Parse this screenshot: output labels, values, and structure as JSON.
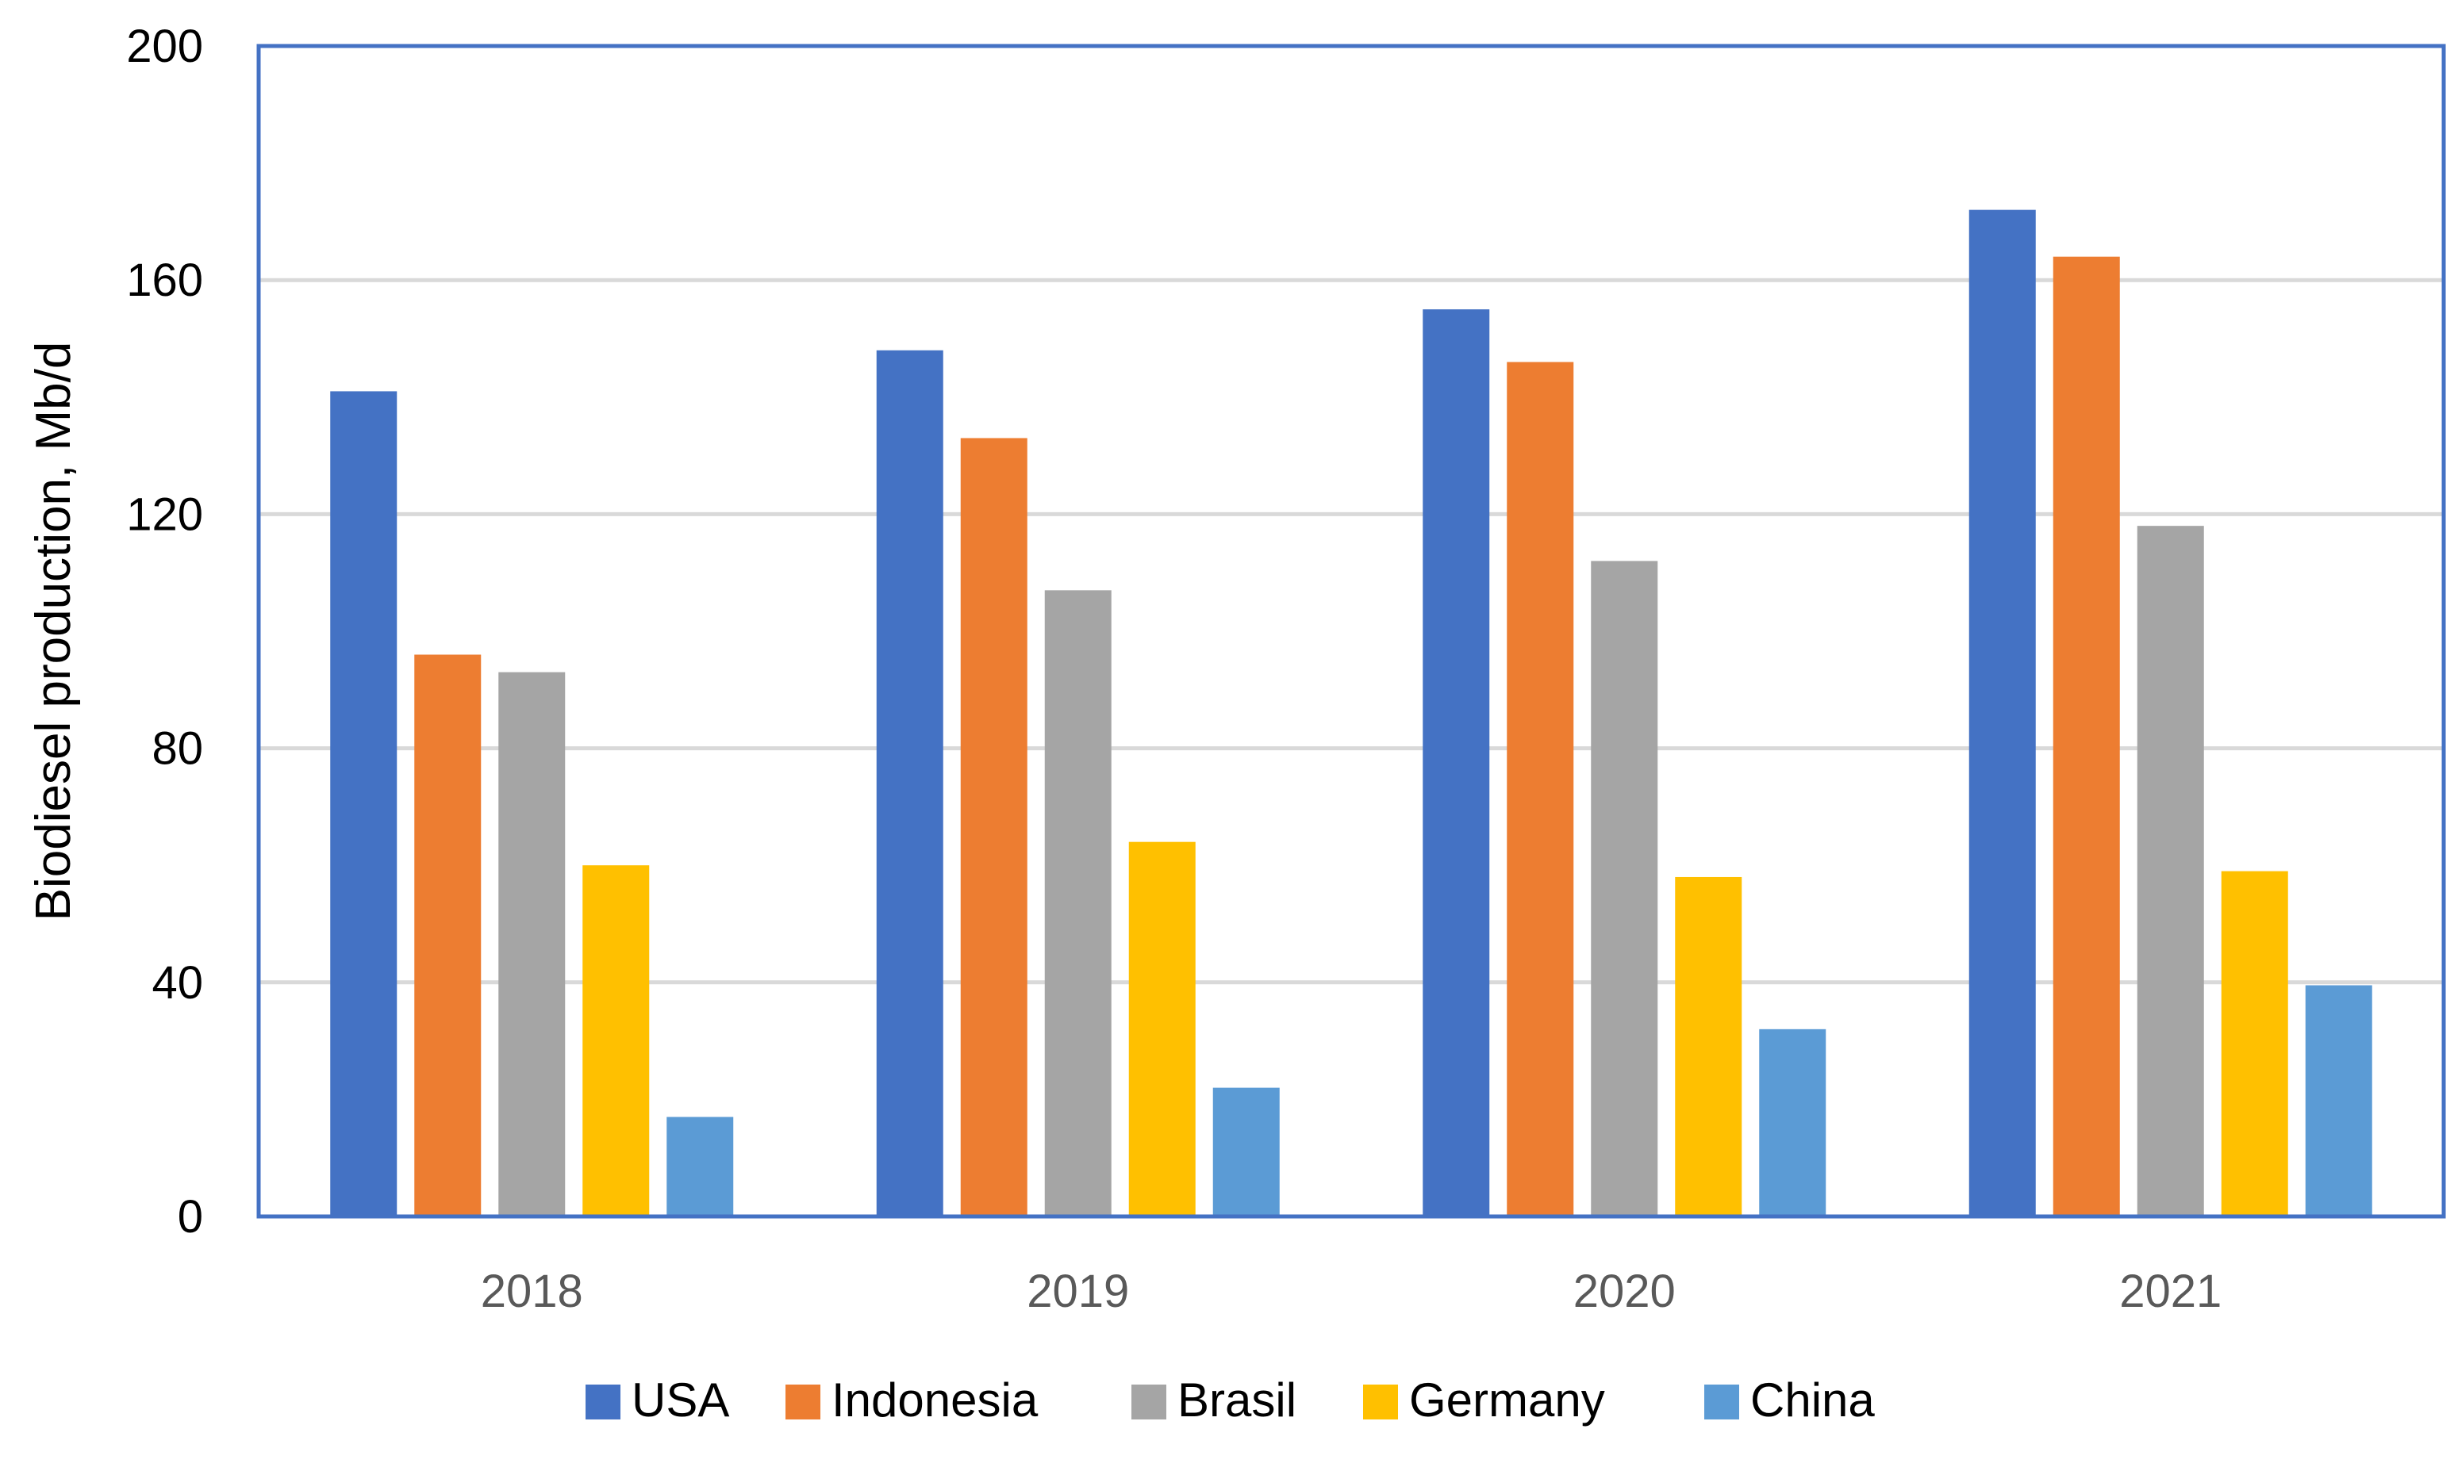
{
  "chart_data": {
    "type": "bar",
    "title": "",
    "xlabel": "",
    "ylabel": "Biodiesel production, Mb/d",
    "categories": [
      "2018",
      "2019",
      "2020",
      "2021"
    ],
    "ylim": [
      0,
      200
    ],
    "yticks": [
      0,
      40,
      80,
      120,
      160,
      200
    ],
    "grid": true,
    "legend_position": "bottom",
    "series": [
      {
        "name": "USA",
        "color": "#4472C4",
        "values": [
          141,
          148,
          155,
          172
        ]
      },
      {
        "name": "Indonesia",
        "color": "#ED7D31",
        "values": [
          96,
          133,
          146,
          164
        ]
      },
      {
        "name": "Brasil",
        "color": "#A5A5A5",
        "values": [
          93,
          107,
          112,
          118
        ]
      },
      {
        "name": "Germany",
        "color": "#FFC000",
        "values": [
          60,
          64,
          58,
          59
        ]
      },
      {
        "name": "China",
        "color": "#5B9BD5",
        "values": [
          17,
          22,
          32,
          39.5
        ]
      }
    ]
  },
  "colors": {
    "frame": "#4472C4",
    "gridline": "#D9D9D9",
    "tick_label": "#595959",
    "axis_label": "#000000",
    "legend_text": "#000000"
  }
}
